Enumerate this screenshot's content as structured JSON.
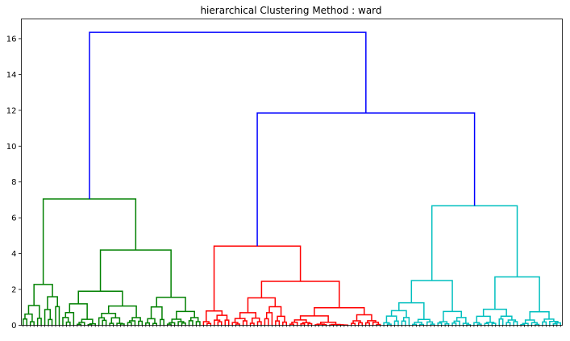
{
  "chart_data": {
    "type": "dendrogram",
    "title": "hierarchical Clustering Method : ward",
    "method": "ward",
    "xlabel": "",
    "ylabel": "",
    "ylim": [
      0,
      17.1
    ],
    "yticks": [
      0,
      2,
      4,
      6,
      8,
      10,
      12,
      14,
      16
    ],
    "grid": false,
    "colors": {
      "above_threshold": "#0000ff",
      "cluster_1": "#008000",
      "cluster_2": "#ff0000",
      "cluster_3": "#00bfbf"
    },
    "n_leaves": 150,
    "clusters": [
      {
        "color_key": "cluster_1",
        "n_leaves": 50,
        "merge_height": 7.05
      },
      {
        "color_key": "cluster_2",
        "n_leaves": 50,
        "merge_height": 4.42
      },
      {
        "color_key": "cluster_3",
        "n_leaves": 50,
        "merge_height": 6.67
      }
    ],
    "top_merges": [
      {
        "name": "cluster_2 + cluster_3",
        "height": 11.85
      },
      {
        "name": "cluster_1 + (cluster_2 + cluster_3)",
        "height": 16.35
      }
    ],
    "subclusters": [
      {
        "cluster": "cluster_1",
        "n_leaves": 11,
        "height": 2.28
      },
      {
        "cluster": "cluster_1",
        "n_leaves": 39,
        "height": 4.2
      },
      {
        "cluster": "cluster_2",
        "n_leaves": 8,
        "height": 0.8
      },
      {
        "cluster": "cluster_2",
        "n_leaves": 42,
        "height": 2.45
      },
      {
        "cluster": "cluster_3",
        "n_leaves": 25,
        "height": 2.5
      },
      {
        "cluster": "cluster_3",
        "n_leaves": 25,
        "height": 2.7
      }
    ]
  }
}
